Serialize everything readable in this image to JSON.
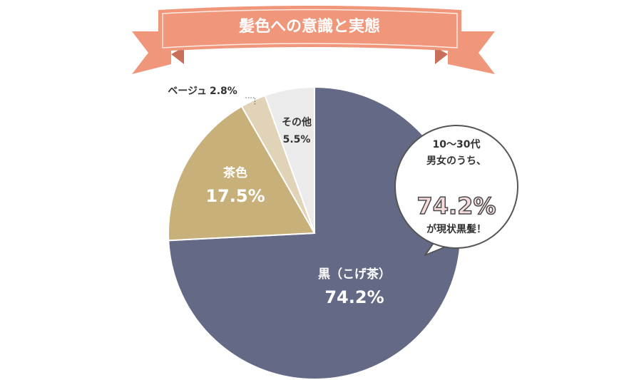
{
  "chart_data": {
    "type": "pie",
    "title": "髪色への意識と実態",
    "categories": [
      "黒（こげ茶）",
      "茶色",
      "ベージュ",
      "その他"
    ],
    "values": [
      74.2,
      17.5,
      2.8,
      5.5
    ],
    "value_labels": [
      "74.2%",
      "17.5%",
      "2.8%",
      "5.5%"
    ],
    "colors": [
      "#646985",
      "#c8b07a",
      "#e0d3b8",
      "#ebebeb"
    ],
    "callout": {
      "lines": [
        "10〜30代",
        "男女のうち、"
      ],
      "highlight": "74.2%",
      "tail": "が現状黒髪！"
    }
  }
}
